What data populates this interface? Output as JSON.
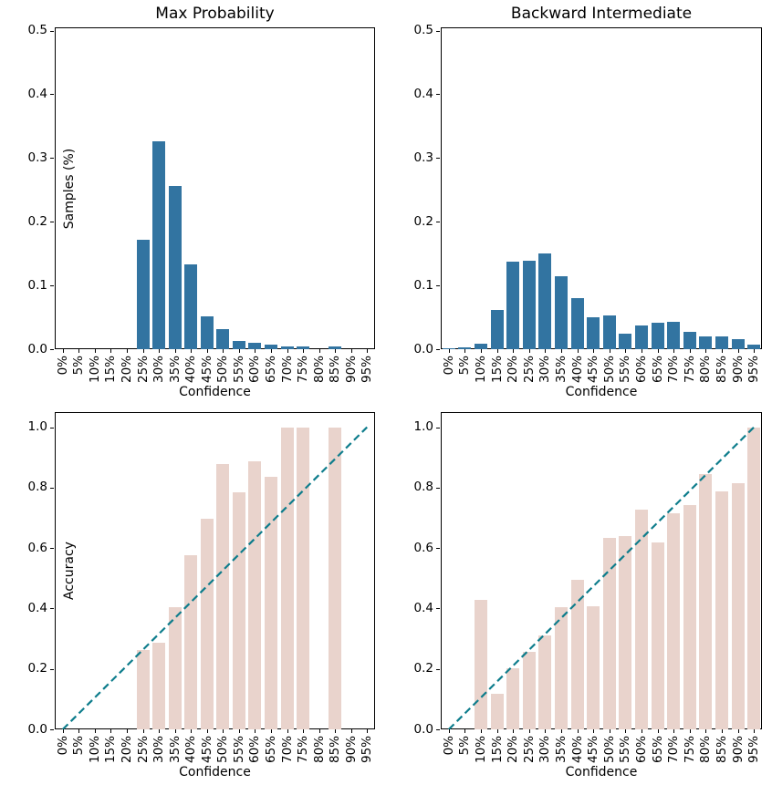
{
  "figure": {
    "background": "#ffffff"
  },
  "chart_data": [
    {
      "type": "bar",
      "title": "Max Probability",
      "xlabel": "Confidence",
      "ylabel": "Samples (%)",
      "categories": [
        "0%",
        "5%",
        "10%",
        "15%",
        "20%",
        "25%",
        "30%",
        "35%",
        "40%",
        "45%",
        "50%",
        "55%",
        "60%",
        "65%",
        "70%",
        "75%",
        "80%",
        "85%",
        "90%",
        "95%"
      ],
      "values": [
        0,
        0,
        0,
        0,
        0,
        0.172,
        0.326,
        0.256,
        0.133,
        0.051,
        0.031,
        0.013,
        0.01,
        0.007,
        0.004,
        0.004,
        0,
        0.005,
        0,
        0
      ],
      "ylim": [
        0,
        0.505
      ],
      "yticks": [
        "0.0",
        "0.1",
        "0.2",
        "0.3",
        "0.4",
        "0.5"
      ],
      "bar_color": "#3274a1",
      "grid": false,
      "legend": null
    },
    {
      "type": "bar",
      "title": "Backward Intermediate",
      "xlabel": "Confidence",
      "ylabel": "",
      "categories": [
        "0%",
        "5%",
        "10%",
        "15%",
        "20%",
        "25%",
        "30%",
        "35%",
        "40%",
        "45%",
        "50%",
        "55%",
        "60%",
        "65%",
        "70%",
        "75%",
        "80%",
        "85%",
        "90%",
        "95%"
      ],
      "values": [
        0.001,
        0.003,
        0.008,
        0.061,
        0.138,
        0.139,
        0.15,
        0.115,
        0.08,
        0.05,
        0.053,
        0.024,
        0.037,
        0.041,
        0.043,
        0.027,
        0.02,
        0.02,
        0.016,
        0.007
      ],
      "ylim": [
        0,
        0.505
      ],
      "yticks": [
        "0.0",
        "0.1",
        "0.2",
        "0.3",
        "0.4",
        "0.5"
      ],
      "bar_color": "#3274a1",
      "grid": false,
      "legend": null
    },
    {
      "type": "bar+line",
      "title": "",
      "xlabel": "Confidence",
      "ylabel": "Accuracy",
      "categories": [
        "0%",
        "5%",
        "10%",
        "15%",
        "20%",
        "25%",
        "30%",
        "35%",
        "40%",
        "45%",
        "50%",
        "55%",
        "60%",
        "65%",
        "70%",
        "75%",
        "80%",
        "85%",
        "90%",
        "95%"
      ],
      "values": [
        0,
        0,
        0,
        0,
        0,
        0.263,
        0.287,
        0.405,
        0.577,
        0.698,
        0.879,
        0.785,
        0.888,
        0.837,
        1.0,
        1.0,
        0,
        1.0,
        0,
        0
      ],
      "ylim": [
        0,
        1.05
      ],
      "yticks": [
        "0.0",
        "0.2",
        "0.4",
        "0.6",
        "0.8",
        "1.0"
      ],
      "bar_color": "#e9d3cc",
      "grid": false,
      "diagonal": {
        "x": [
          "0%",
          "95%"
        ],
        "y": [
          0.0,
          1.0
        ],
        "color": "#0e7d8c",
        "style": "dashed"
      },
      "legend": null
    },
    {
      "type": "bar+line",
      "title": "",
      "xlabel": "Confidence",
      "ylabel": "",
      "categories": [
        "0%",
        "5%",
        "10%",
        "15%",
        "20%",
        "25%",
        "30%",
        "35%",
        "40%",
        "45%",
        "50%",
        "55%",
        "60%",
        "65%",
        "70%",
        "75%",
        "80%",
        "85%",
        "90%",
        "95%"
      ],
      "values": [
        0,
        0,
        0.429,
        0.118,
        0.202,
        0.257,
        0.311,
        0.405,
        0.495,
        0.408,
        0.634,
        0.641,
        0.728,
        0.619,
        0.716,
        0.743,
        0.846,
        0.789,
        0.816,
        1.0
      ],
      "ylim": [
        0,
        1.05
      ],
      "yticks": [
        "0.0",
        "0.2",
        "0.4",
        "0.6",
        "0.8",
        "1.0"
      ],
      "bar_color": "#e9d3cc",
      "grid": false,
      "diagonal": {
        "x": [
          "0%",
          "95%"
        ],
        "y": [
          0.0,
          1.0
        ],
        "color": "#0e7d8c",
        "style": "dashed"
      },
      "legend": null
    }
  ]
}
